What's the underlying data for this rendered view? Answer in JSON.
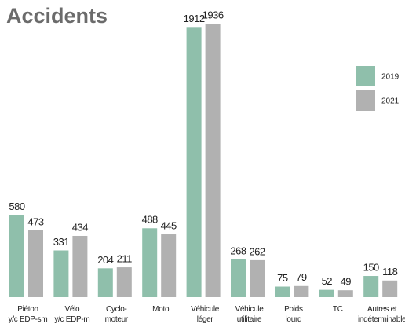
{
  "chart_data": {
    "type": "bar",
    "title": "Accidents",
    "categories": [
      "Piéton\ny/c EDP-sm",
      "Vélo\ny/c EDP-m",
      "Cyclo-\nmoteur",
      "Moto",
      "Véhicule\nléger",
      "Véhicule\nutilitaire",
      "Poids\nlourd",
      "TC",
      "Autres et\nindéterminable"
    ],
    "series": [
      {
        "name": "2019",
        "color": "#8fbfab",
        "values": [
          580,
          331,
          204,
          488,
          1912,
          268,
          75,
          52,
          150
        ]
      },
      {
        "name": "2021",
        "color": "#b1b1b1",
        "values": [
          473,
          434,
          211,
          445,
          1936,
          262,
          79,
          49,
          118
        ]
      }
    ],
    "legend": "right"
  }
}
